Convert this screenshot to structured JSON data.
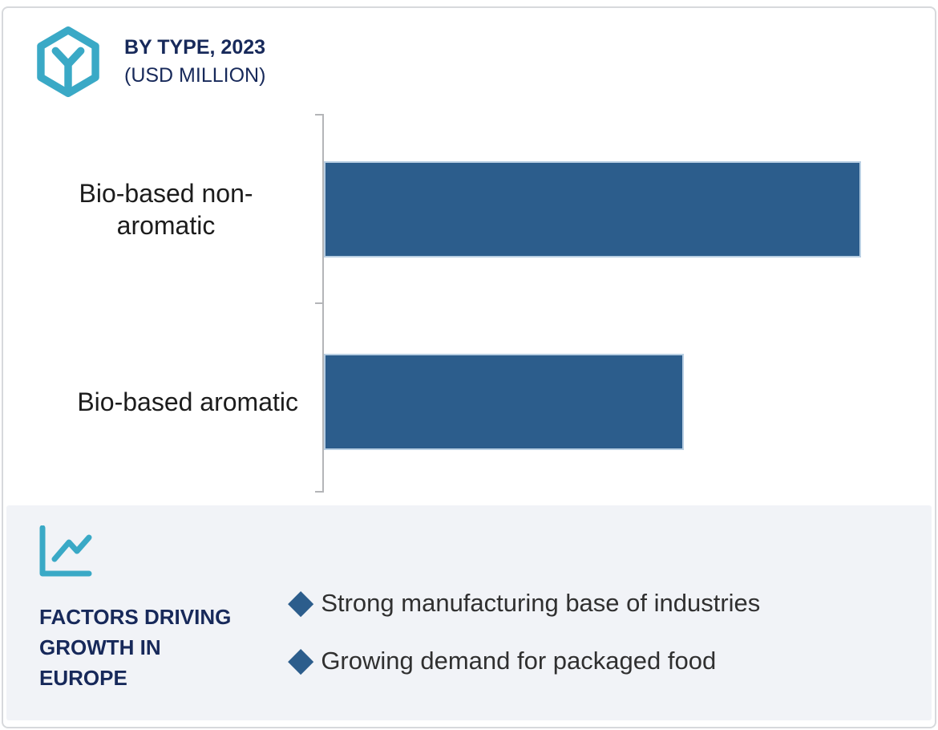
{
  "header": {
    "title_line1": "BY TYPE, 2023",
    "title_line2": "(USD MILLION)"
  },
  "chart_data": {
    "type": "bar",
    "orientation": "horizontal",
    "title": "BY TYPE, 2023 (USD MILLION)",
    "categories": [
      "Bio-based non-aromatic",
      "Bio-based aromatic"
    ],
    "values_relative": [
      100,
      67
    ],
    "value_axis": "no numeric axis, gridlines or data labels shown; bar lengths relative to max",
    "bar_color": "#2c5d8c",
    "legend": "none"
  },
  "factors": {
    "heading": "FACTORS DRIVING GROWTH IN EUROPE",
    "marker": "◆",
    "items": [
      {
        "text": "Strong manufacturing base of industries"
      },
      {
        "text": "Growing demand for packaged food"
      }
    ]
  },
  "colors": {
    "accent_teal": "#3aa9c6",
    "navy": "#17295a",
    "bar_blue": "#2c5d8c",
    "bar_edge": "#b9cfe3",
    "panel_gray": "#f1f3f7",
    "axis_gray": "#b4b5b8",
    "label_text": "#1c1c1c",
    "bullet_text": "#303030"
  }
}
